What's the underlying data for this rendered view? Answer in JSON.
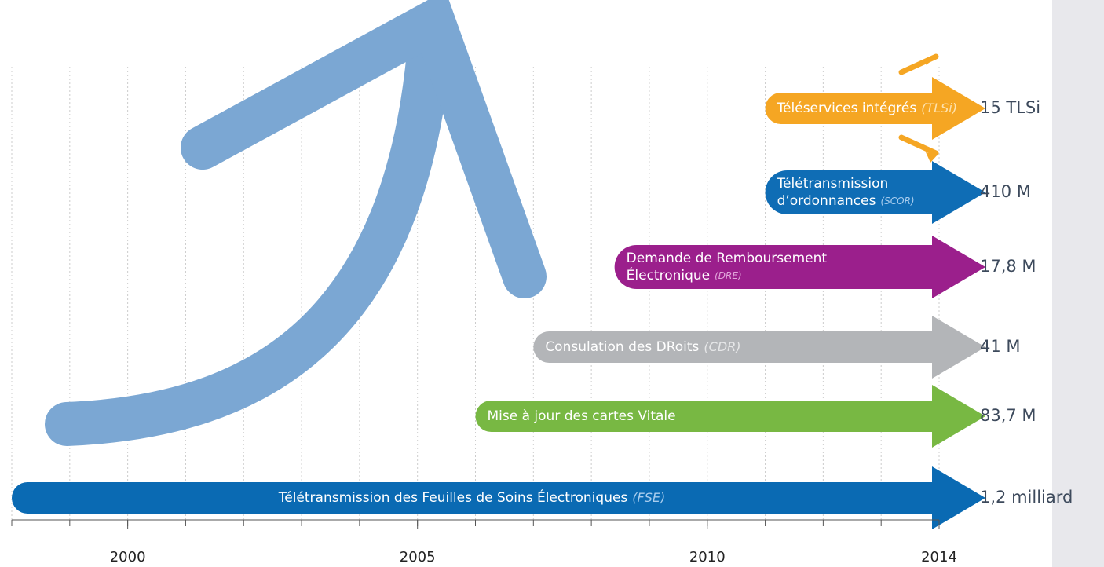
{
  "chart_data": {
    "type": "timeline",
    "xlim": [
      1998,
      2014
    ],
    "xticks": [
      2000,
      2005,
      2010,
      2014
    ],
    "minor_xticks": [
      1998,
      1999,
      2000,
      2001,
      2002,
      2003,
      2004,
      2005,
      2006,
      2007,
      2008,
      2009,
      2010,
      2011,
      2012,
      2013,
      2014
    ],
    "rows": [
      {
        "lines": [
          "Téléservices intégrés"
        ],
        "abbr": "(TLSi)",
        "start": 2011,
        "result": "15 TLSi",
        "color": "#f5a623",
        "abbr_color": "#fde2ae",
        "extra_arrows": true
      },
      {
        "lines": [
          "Télétransmission",
          "d’ordonnances"
        ],
        "abbr": "(SCOR)",
        "start": 2011,
        "result": "410 M",
        "color": "#0f6db5",
        "abbr_color": "#a9cdee"
      },
      {
        "lines": [
          "Demande de Remboursement",
          "Électronique"
        ],
        "abbr": "(DRE)",
        "start": 2008.4,
        "result": "17,8 M",
        "color": "#9b1f8c",
        "abbr_color": "#e2a6dc"
      },
      {
        "lines": [
          "Consulation des DRoits"
        ],
        "abbr": "(CDR)",
        "start": 2007,
        "result": "41 M",
        "color": "#b3b5b8",
        "abbr_color": "#e6e7e8"
      },
      {
        "lines": [
          "Mise à jour des cartes Vitale"
        ],
        "start": 2006,
        "result": "83,7 M",
        "color": "#78b843"
      },
      {
        "lines": [
          "Télétransmission des Feuilles de Soins Électroniques"
        ],
        "abbr": "(FSE)",
        "start": 1998,
        "result": "1,2 milliard",
        "color": "#0a6ab3",
        "abbr_color": "#a9cdee",
        "label_align": "center"
      }
    ]
  }
}
